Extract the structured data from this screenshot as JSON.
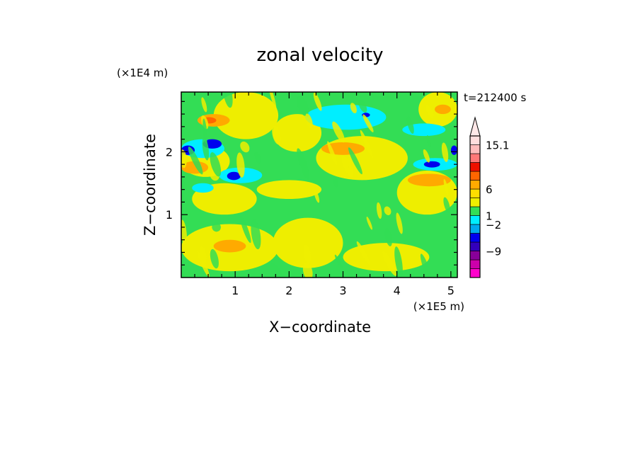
{
  "chart_data": {
    "type": "heatmap",
    "title": "zonal velocity",
    "xlabel": "X−coordinate",
    "ylabel": "Z−coordinate",
    "x_unit": "(×1E5 m)",
    "y_unit": "(×1E4 m)",
    "time_label": "t=212400 s",
    "xlim": [
      0,
      5.12
    ],
    "ylim": [
      0,
      2.95
    ],
    "x_ticks": [
      1,
      2,
      3,
      4,
      5
    ],
    "y_ticks": [
      1,
      2
    ],
    "colorbar": {
      "labels": [
        "15.1",
        "6",
        "1",
        "−2",
        "−9"
      ],
      "colors": [
        "#ff00cc",
        "#cc00aa",
        "#880099",
        "#3300bb",
        "#0000ee",
        "#00aaee",
        "#00eeff",
        "#33dd55",
        "#eeee00",
        "#ffdd00",
        "#ffaa00",
        "#ff6600",
        "#ee1100",
        "#ff7777",
        "#ffbbbb",
        "#ffdddd"
      ],
      "extend_max": true
    },
    "field_regions": [
      {
        "level": "green",
        "x0": 0.0,
        "x1": 5.12,
        "z0": 0.0,
        "z1": 2.95
      },
      {
        "level": "yellow",
        "x0": 0.0,
        "x1": 1.8,
        "z0": 0.1,
        "z1": 0.85
      },
      {
        "level": "yellow",
        "x0": 1.7,
        "x1": 3.0,
        "z0": 0.15,
        "z1": 0.95
      },
      {
        "level": "yellow",
        "x0": 3.0,
        "x1": 4.6,
        "z0": 0.1,
        "z1": 0.55
      },
      {
        "level": "yellow",
        "x0": 0.2,
        "x1": 1.4,
        "z0": 1.0,
        "z1": 1.5
      },
      {
        "level": "yellow",
        "x0": 1.4,
        "x1": 2.6,
        "z0": 1.25,
        "z1": 1.55
      },
      {
        "level": "yellow",
        "x0": 2.5,
        "x1": 4.2,
        "z0": 1.55,
        "z1": 2.25
      },
      {
        "level": "yellow",
        "x0": 4.0,
        "x1": 5.12,
        "z0": 1.0,
        "z1": 1.7
      },
      {
        "level": "yellow",
        "x0": 0.0,
        "x1": 0.9,
        "z0": 1.6,
        "z1": 2.1
      },
      {
        "level": "yellow",
        "x0": 0.6,
        "x1": 1.8,
        "z0": 2.2,
        "z1": 2.95
      },
      {
        "level": "yellow",
        "x0": 1.7,
        "x1": 2.6,
        "z0": 2.0,
        "z1": 2.6
      },
      {
        "level": "yellow",
        "x0": 4.4,
        "x1": 5.12,
        "z0": 2.4,
        "z1": 2.95
      },
      {
        "level": "orange",
        "x0": 0.3,
        "x1": 0.9,
        "z0": 2.4,
        "z1": 2.6
      },
      {
        "level": "orange",
        "x0": 0.0,
        "x1": 0.5,
        "z0": 1.65,
        "z1": 1.85
      },
      {
        "level": "orange",
        "x0": 0.6,
        "x1": 1.2,
        "z0": 0.4,
        "z1": 0.6
      },
      {
        "level": "orange",
        "x0": 2.6,
        "x1": 3.4,
        "z0": 1.95,
        "z1": 2.15
      },
      {
        "level": "orange",
        "x0": 4.2,
        "x1": 5.0,
        "z0": 1.45,
        "z1": 1.65
      },
      {
        "level": "orange",
        "x0": 4.7,
        "x1": 5.0,
        "z0": 2.6,
        "z1": 2.75
      },
      {
        "level": "red",
        "x0": 0.38,
        "x1": 0.65,
        "z0": 2.45,
        "z1": 2.55
      },
      {
        "level": "cyan",
        "x0": 2.3,
        "x1": 3.8,
        "z0": 2.35,
        "z1": 2.75
      },
      {
        "level": "cyan",
        "x0": 4.1,
        "x1": 4.9,
        "z0": 2.25,
        "z1": 2.45
      },
      {
        "level": "cyan",
        "x0": 0.0,
        "x1": 0.8,
        "z0": 1.9,
        "z1": 2.2
      },
      {
        "level": "cyan",
        "x0": 0.7,
        "x1": 1.5,
        "z0": 1.5,
        "z1": 1.75
      },
      {
        "level": "cyan",
        "x0": 0.2,
        "x1": 0.6,
        "z0": 1.35,
        "z1": 1.5
      },
      {
        "level": "cyan",
        "x0": 4.3,
        "x1": 5.12,
        "z0": 1.7,
        "z1": 1.9
      },
      {
        "level": "blue",
        "x0": 0.0,
        "x1": 0.25,
        "z0": 1.95,
        "z1": 2.1
      },
      {
        "level": "blue",
        "x0": 0.4,
        "x1": 0.75,
        "z0": 2.05,
        "z1": 2.2
      },
      {
        "level": "blue",
        "x0": 0.85,
        "x1": 1.1,
        "z0": 1.55,
        "z1": 1.68
      },
      {
        "level": "blue",
        "x0": 4.5,
        "x1": 4.8,
        "z0": 1.75,
        "z1": 1.85
      },
      {
        "level": "blue",
        "x0": 5.0,
        "x1": 5.12,
        "z0": 1.95,
        "z1": 2.1
      },
      {
        "level": "blue",
        "x0": 3.35,
        "x1": 3.5,
        "z0": 2.55,
        "z1": 2.62
      }
    ]
  }
}
